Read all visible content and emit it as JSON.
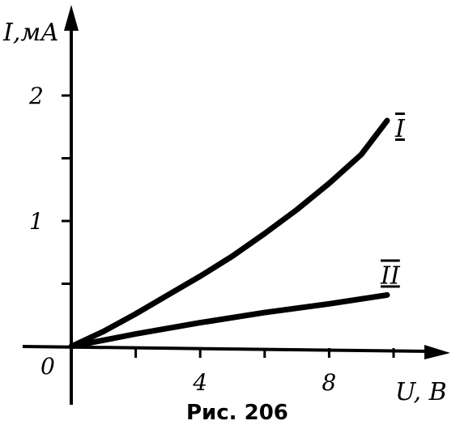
{
  "chart_data": {
    "type": "line",
    "ylabel": "I,мА",
    "xlabel": "U, В",
    "origin_label": "0",
    "caption": "Рис. 206",
    "xlim": [
      0,
      11
    ],
    "ylim": [
      0,
      2.5
    ],
    "x_ticks": [
      2,
      4,
      6,
      8,
      10
    ],
    "x_tick_labels": [
      {
        "value": 4,
        "label": "4"
      },
      {
        "value": 8,
        "label": "8"
      }
    ],
    "y_ticks": [
      0.5,
      1,
      1.5,
      2
    ],
    "y_tick_labels": [
      {
        "value": 1,
        "label": "1"
      },
      {
        "value": 2,
        "label": "2"
      }
    ],
    "grid": false,
    "series": [
      {
        "name": "I",
        "x": [
          0,
          1,
          2,
          3,
          4,
          5,
          6,
          7,
          8,
          9,
          9.8
        ],
        "y": [
          0,
          0.12,
          0.26,
          0.41,
          0.56,
          0.72,
          0.9,
          1.09,
          1.3,
          1.53,
          1.8
        ]
      },
      {
        "name": "II",
        "x": [
          0,
          2,
          4,
          6,
          8,
          9.8
        ],
        "y": [
          0,
          0.1,
          0.19,
          0.27,
          0.34,
          0.41
        ]
      }
    ]
  }
}
